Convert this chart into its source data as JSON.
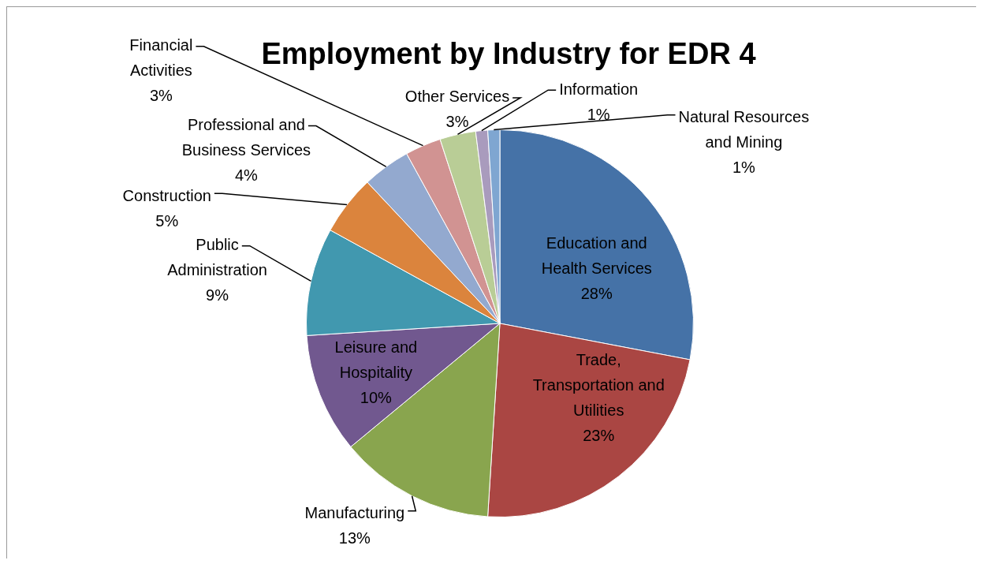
{
  "chart_data": {
    "type": "pie",
    "title": "Employment by Industry for EDR 4",
    "categories": [
      "Education and Health Services",
      "Trade, Transportation and Utilities",
      "Manufacturing",
      "Leisure and Hospitality",
      "Public Administration",
      "Construction",
      "Professional and Business Services",
      "Financial Activities",
      "Other Services",
      "Information",
      "Natural Resources and Mining"
    ],
    "values": [
      28,
      23,
      13,
      10,
      9,
      5,
      4,
      3,
      3,
      1,
      1
    ],
    "colors": [
      "#4572a7",
      "#aa4643",
      "#89a54e",
      "#71588f",
      "#4198af",
      "#db843d",
      "#93a9cf",
      "#d19392",
      "#b9cd96",
      "#a99bbd",
      "#7fa6d1"
    ],
    "value_labels": [
      "28%",
      "23%",
      "13%",
      "10%",
      "9%",
      "5%",
      "4%",
      "3%",
      "3%",
      "1%",
      "1%"
    ],
    "legend": false
  }
}
